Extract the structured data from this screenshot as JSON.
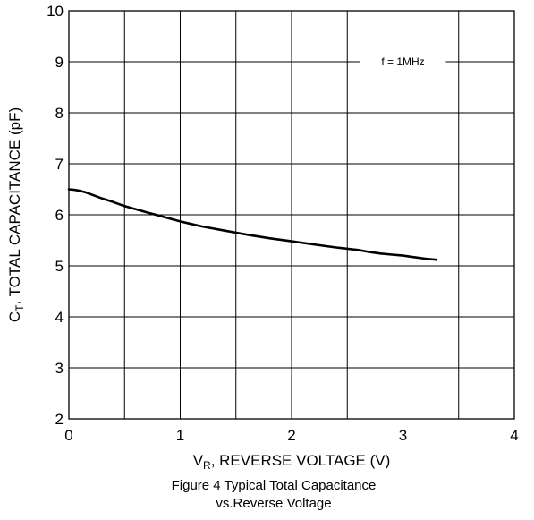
{
  "chart_data": {
    "type": "line",
    "title_line1": "Figure 4 Typical Total Capacitance",
    "title_line2": "vs.Reverse Voltage",
    "xlabel": {
      "main": "V",
      "sub": "R",
      "rest": ", REVERSE VOLTAGE (V)"
    },
    "ylabel": {
      "main": "C",
      "sub": "T",
      "rest": ", TOTAL CAPACITANCE (pF)"
    },
    "xlim": [
      0,
      4
    ],
    "ylim": [
      2,
      10
    ],
    "xticks": [
      "0",
      "1",
      "2",
      "3",
      "4"
    ],
    "yticks": [
      "2",
      "3",
      "4",
      "5",
      "6",
      "7",
      "8",
      "9",
      "10"
    ],
    "grid": true,
    "annotation": "f = 1MHz",
    "series": [
      {
        "x": [
          0,
          0.05,
          0.1,
          0.15,
          0.2,
          0.3,
          0.4,
          0.5,
          0.6,
          0.7,
          0.8,
          0.9,
          1.0,
          1.1,
          1.2,
          1.4,
          1.6,
          1.8,
          2.0,
          2.2,
          2.4,
          2.6,
          2.7,
          2.8,
          2.9,
          3.0,
          3.1,
          3.2,
          3.3
        ],
        "y": [
          6.5,
          6.49,
          6.47,
          6.44,
          6.4,
          6.32,
          6.25,
          6.17,
          6.11,
          6.05,
          5.99,
          5.93,
          5.87,
          5.82,
          5.77,
          5.69,
          5.61,
          5.54,
          5.48,
          5.42,
          5.36,
          5.31,
          5.27,
          5.24,
          5.22,
          5.2,
          5.17,
          5.14,
          5.12
        ]
      }
    ]
  }
}
